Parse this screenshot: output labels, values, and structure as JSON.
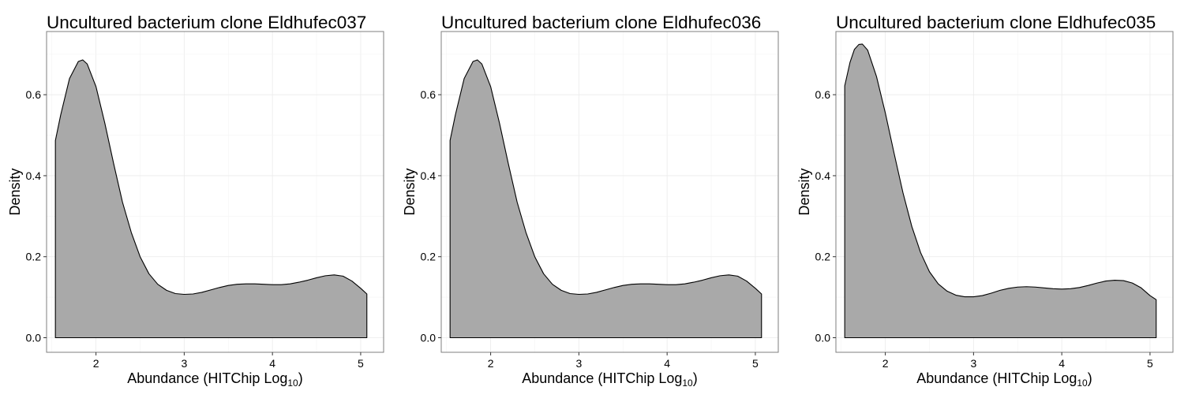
{
  "colors": {
    "fill": "#a9a9a9",
    "line": "#000000",
    "grid": "#ebebeb",
    "panel_border": "#7f7f7f",
    "background": "#ffffff"
  },
  "chart_data": [
    {
      "type": "area",
      "title": "Uncultured bacterium clone Eldhufec037",
      "xlabel": "Abundance (HITChip Log",
      "xlabel_subscript": "10",
      "xlabel_suffix": ")",
      "ylabel": "Density",
      "xlim": [
        1.44,
        5.26
      ],
      "ylim": [
        -0.036,
        0.756
      ],
      "xticks": [
        2,
        3,
        4,
        5
      ],
      "xtick_labels": [
        "2",
        "3",
        "4",
        "5"
      ],
      "yticks": [
        0.0,
        0.2,
        0.4,
        0.6
      ],
      "ytick_labels": [
        "0.0",
        "0.2",
        "0.4",
        "0.6"
      ],
      "grid": true,
      "x": [
        1.54,
        1.6,
        1.7,
        1.8,
        1.85,
        1.9,
        2.0,
        2.1,
        2.2,
        2.3,
        2.4,
        2.5,
        2.6,
        2.7,
        2.8,
        2.9,
        3.0,
        3.1,
        3.2,
        3.3,
        3.4,
        3.5,
        3.6,
        3.7,
        3.8,
        3.9,
        4.0,
        4.1,
        4.2,
        4.3,
        4.4,
        4.5,
        4.6,
        4.7,
        4.8,
        4.9,
        5.0,
        5.07
      ],
      "y": [
        0.487,
        0.55,
        0.64,
        0.682,
        0.686,
        0.676,
        0.62,
        0.53,
        0.43,
        0.335,
        0.26,
        0.2,
        0.158,
        0.132,
        0.117,
        0.109,
        0.107,
        0.108,
        0.112,
        0.118,
        0.124,
        0.129,
        0.132,
        0.133,
        0.133,
        0.132,
        0.131,
        0.131,
        0.133,
        0.137,
        0.142,
        0.148,
        0.153,
        0.155,
        0.152,
        0.14,
        0.122,
        0.108
      ]
    },
    {
      "type": "area",
      "title": "Uncultured bacterium clone Eldhufec036",
      "xlabel": "Abundance (HITChip Log",
      "xlabel_subscript": "10",
      "xlabel_suffix": ")",
      "ylabel": "Density",
      "xlim": [
        1.44,
        5.26
      ],
      "ylim": [
        -0.036,
        0.756
      ],
      "xticks": [
        2,
        3,
        4,
        5
      ],
      "xtick_labels": [
        "2",
        "3",
        "4",
        "5"
      ],
      "yticks": [
        0.0,
        0.2,
        0.4,
        0.6
      ],
      "ytick_labels": [
        "0.0",
        "0.2",
        "0.4",
        "0.6"
      ],
      "grid": true,
      "x": [
        1.54,
        1.6,
        1.7,
        1.8,
        1.85,
        1.9,
        2.0,
        2.1,
        2.2,
        2.3,
        2.4,
        2.5,
        2.6,
        2.7,
        2.8,
        2.9,
        3.0,
        3.1,
        3.2,
        3.3,
        3.4,
        3.5,
        3.6,
        3.7,
        3.8,
        3.9,
        4.0,
        4.1,
        4.2,
        4.3,
        4.4,
        4.5,
        4.6,
        4.7,
        4.8,
        4.9,
        5.0,
        5.07
      ],
      "y": [
        0.487,
        0.55,
        0.64,
        0.682,
        0.686,
        0.676,
        0.62,
        0.53,
        0.43,
        0.335,
        0.26,
        0.2,
        0.158,
        0.132,
        0.117,
        0.109,
        0.107,
        0.108,
        0.112,
        0.118,
        0.124,
        0.129,
        0.132,
        0.133,
        0.133,
        0.132,
        0.131,
        0.131,
        0.133,
        0.137,
        0.142,
        0.148,
        0.153,
        0.155,
        0.152,
        0.14,
        0.122,
        0.108
      ]
    },
    {
      "type": "area",
      "title": "Uncultured bacterium clone Eldhufec035",
      "xlabel": "Abundance (HITChip Log",
      "xlabel_subscript": "10",
      "xlabel_suffix": ")",
      "ylabel": "Density",
      "xlim": [
        1.44,
        5.26
      ],
      "ylim": [
        -0.036,
        0.756
      ],
      "xticks": [
        2,
        3,
        4,
        5
      ],
      "xtick_labels": [
        "2",
        "3",
        "4",
        "5"
      ],
      "yticks": [
        0.0,
        0.2,
        0.4,
        0.6
      ],
      "ytick_labels": [
        "0.0",
        "0.2",
        "0.4",
        "0.6"
      ],
      "grid": true,
      "x": [
        1.54,
        1.6,
        1.65,
        1.7,
        1.74,
        1.8,
        1.9,
        2.0,
        2.1,
        2.2,
        2.3,
        2.4,
        2.5,
        2.6,
        2.7,
        2.8,
        2.9,
        3.0,
        3.1,
        3.2,
        3.3,
        3.4,
        3.5,
        3.6,
        3.7,
        3.8,
        3.9,
        4.0,
        4.1,
        4.2,
        4.3,
        4.4,
        4.5,
        4.6,
        4.7,
        4.8,
        4.9,
        5.0,
        5.07
      ],
      "y": [
        0.622,
        0.68,
        0.712,
        0.724,
        0.725,
        0.71,
        0.645,
        0.555,
        0.455,
        0.358,
        0.275,
        0.21,
        0.163,
        0.133,
        0.115,
        0.105,
        0.101,
        0.101,
        0.104,
        0.11,
        0.117,
        0.122,
        0.125,
        0.126,
        0.125,
        0.123,
        0.121,
        0.12,
        0.121,
        0.124,
        0.129,
        0.135,
        0.14,
        0.142,
        0.141,
        0.135,
        0.123,
        0.104,
        0.094
      ]
    }
  ]
}
